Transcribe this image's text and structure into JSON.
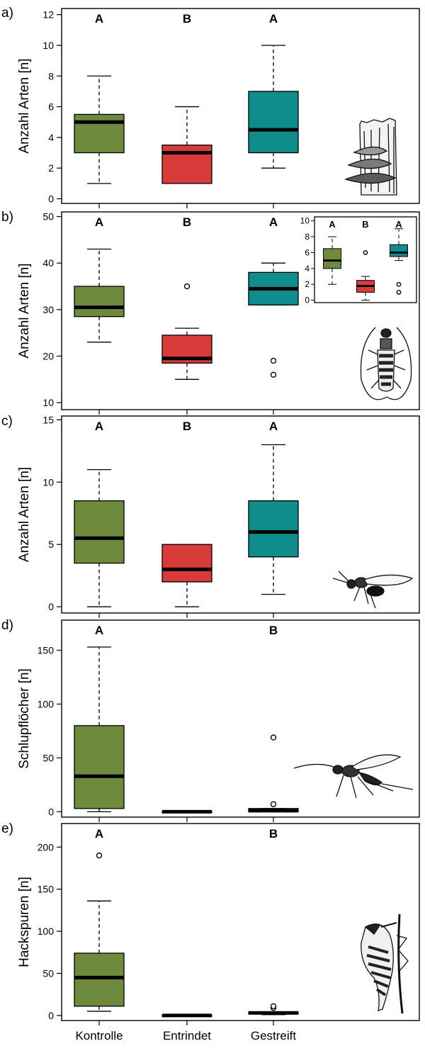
{
  "x_categories": [
    "Kontrolle",
    "Entrindet",
    "Gestreift"
  ],
  "colors": {
    "Kontrolle": "#6e8b3d",
    "Entrindet": "#d93b3b",
    "Gestreift": "#0f8c8c"
  },
  "chart_data": [
    {
      "panel": "a)",
      "type": "box",
      "ylabel": "Anzahl Arten [n]",
      "ylim": [
        -0.3,
        12.4
      ],
      "yticks": [
        0,
        2,
        4,
        6,
        8,
        10,
        12
      ],
      "letters": [
        "A",
        "B",
        "A"
      ],
      "illustration": "bracket-fungus-on-stump",
      "boxes": [
        {
          "category": "Kontrolle",
          "min": 1,
          "q1": 3,
          "median": 5,
          "q3": 5.5,
          "max": 8,
          "outliers": []
        },
        {
          "category": "Entrindet",
          "min": 1,
          "q1": 1,
          "median": 3,
          "q3": 3.5,
          "max": 6,
          "outliers": []
        },
        {
          "category": "Gestreift",
          "min": 2,
          "q1": 3,
          "median": 4.5,
          "q3": 7,
          "max": 10,
          "outliers": []
        }
      ]
    },
    {
      "panel": "b)",
      "type": "box",
      "ylabel": "Anzahl Arten [n]",
      "ylim": [
        8.5,
        51
      ],
      "yticks": [
        10,
        20,
        30,
        40,
        50
      ],
      "letters": [
        "A",
        "B",
        "A"
      ],
      "illustration": "longhorn-beetle",
      "boxes": [
        {
          "category": "Kontrolle",
          "min": 23,
          "q1": 28.5,
          "median": 30.5,
          "q3": 35,
          "max": 43,
          "outliers": []
        },
        {
          "category": "Entrindet",
          "min": 15,
          "q1": 18.5,
          "median": 19.5,
          "q3": 24.5,
          "max": 26,
          "outliers": [
            35
          ]
        },
        {
          "category": "Gestreift",
          "min": 31,
          "q1": 31,
          "median": 34.5,
          "q3": 38,
          "max": 40,
          "outliers": [
            19,
            16
          ]
        }
      ],
      "inset": {
        "ylim": [
          -0.3,
          10.5
        ],
        "yticks": [
          0,
          2,
          4,
          6,
          8,
          10
        ],
        "letters": [
          "A",
          "B",
          "A"
        ],
        "boxes": [
          {
            "category": "Kontrolle",
            "min": 2,
            "q1": 4,
            "median": 5,
            "q3": 6.5,
            "max": 8,
            "outliers": []
          },
          {
            "category": "Entrindet",
            "min": 0,
            "q1": 1,
            "median": 1.8,
            "q3": 2.5,
            "max": 3,
            "outliers": [
              6
            ]
          },
          {
            "category": "Gestreift",
            "min": 5,
            "q1": 5.5,
            "median": 6,
            "q3": 7,
            "max": 9,
            "outliers": [
              2,
              1
            ]
          }
        ]
      }
    },
    {
      "panel": "c)",
      "type": "box",
      "ylabel": "Anzahl Arten [n]",
      "ylim": [
        -0.5,
        15.3
      ],
      "yticks": [
        0,
        5,
        10,
        15
      ],
      "letters": [
        "A",
        "B",
        "A"
      ],
      "illustration": "parasitic-wasp",
      "boxes": [
        {
          "category": "Kontrolle",
          "min": 0,
          "q1": 3.5,
          "median": 5.5,
          "q3": 8.5,
          "max": 11,
          "outliers": []
        },
        {
          "category": "Entrindet",
          "min": 0,
          "q1": 2,
          "median": 3,
          "q3": 5,
          "max": 5,
          "outliers": []
        },
        {
          "category": "Gestreift",
          "min": 1,
          "q1": 4,
          "median": 6,
          "q3": 8.5,
          "max": 13,
          "outliers": []
        }
      ]
    },
    {
      "panel": "d)",
      "type": "box",
      "ylabel": "Schlupflöcher [n]",
      "ylim": [
        -5,
        178
      ],
      "yticks": [
        0,
        50,
        100,
        150
      ],
      "letters": [
        "A",
        "",
        "B"
      ],
      "illustration": "ichneumon-wasp",
      "boxes": [
        {
          "category": "Kontrolle",
          "min": 0,
          "q1": 3,
          "median": 33,
          "q3": 80,
          "max": 153,
          "outliers": []
        },
        {
          "category": "Entrindet",
          "min": 0,
          "q1": 0,
          "median": 0,
          "q3": 0,
          "max": 0,
          "outliers": []
        },
        {
          "category": "Gestreift",
          "min": 0,
          "q1": 0,
          "median": 1,
          "q3": 3,
          "max": 3,
          "outliers": [
            69,
            7
          ]
        }
      ]
    },
    {
      "panel": "e)",
      "type": "box",
      "ylabel": "Hackspuren [n]",
      "ylim": [
        -6,
        228
      ],
      "yticks": [
        0,
        50,
        100,
        150,
        200
      ],
      "letters": [
        "A",
        "",
        "B"
      ],
      "illustration": "woodpecker",
      "boxes": [
        {
          "category": "Kontrolle",
          "min": 5,
          "q1": 11,
          "median": 45,
          "q3": 74,
          "max": 136,
          "outliers": [
            190
          ]
        },
        {
          "category": "Entrindet",
          "min": 0,
          "q1": 0,
          "median": 0,
          "q3": 0,
          "max": 0,
          "outliers": []
        },
        {
          "category": "Gestreift",
          "min": 1,
          "q1": 2,
          "median": 3,
          "q3": 4,
          "max": 4,
          "outliers": [
            9,
            11
          ]
        }
      ]
    }
  ]
}
